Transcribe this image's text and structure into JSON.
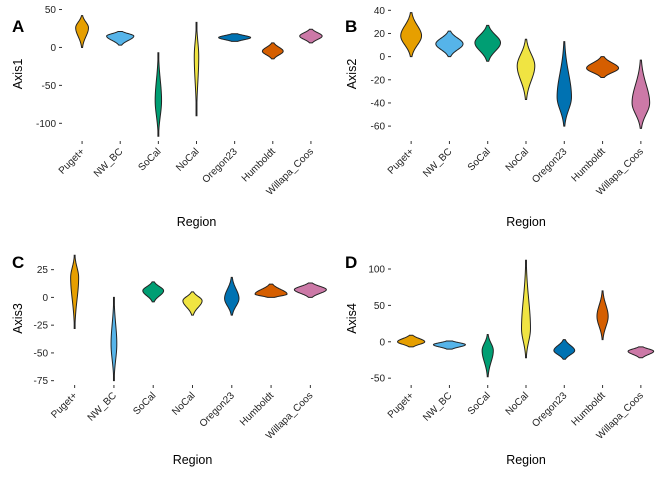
{
  "chart_data": [
    {
      "type": "violin",
      "panel": "A",
      "xlabel": "Region",
      "ylabel": "Axis1",
      "categories": [
        "Puget+",
        "NW_BC",
        "SoCal",
        "NoCal",
        "Oregon23",
        "Humboldt",
        "Willapa_Coos"
      ],
      "ylim": [
        -122,
        52
      ],
      "yticks": [
        50,
        0,
        -50,
        -100
      ],
      "ytick_labels": [
        "50",
        "0",
        "-50",
        "-100"
      ],
      "groups": [
        {
          "name": "Puget+",
          "color": "#E69F00",
          "min": 0,
          "max": 42,
          "peak": 26,
          "width": 0.4
        },
        {
          "name": "NW_BC",
          "color": "#56B4E9",
          "min": 3,
          "max": 21,
          "peak": 15,
          "width": 0.85
        },
        {
          "name": "SoCal",
          "color": "#009E73",
          "min": -117,
          "max": -7,
          "peak": -70,
          "width": 0.2
        },
        {
          "name": "NoCal",
          "color": "#F0E442",
          "min": -90,
          "max": 33,
          "peak": -12,
          "width": 0.14
        },
        {
          "name": "Oregon23",
          "color": "#0072B2",
          "min": 8,
          "max": 18,
          "peak": 13,
          "width": 1.0
        },
        {
          "name": "Humboldt",
          "color": "#D55E00",
          "min": -15,
          "max": 6,
          "peak": -5,
          "width": 0.65
        },
        {
          "name": "Willapa_Coos",
          "color": "#CC79A7",
          "min": 6,
          "max": 24,
          "peak": 15,
          "width": 0.7
        }
      ]
    },
    {
      "type": "violin",
      "panel": "B",
      "xlabel": "Region",
      "ylabel": "Axis2",
      "categories": [
        "Puget+",
        "NW_BC",
        "SoCal",
        "NoCal",
        "Oregon23",
        "Humboldt",
        "Willapa_Coos"
      ],
      "ylim": [
        -72,
        42
      ],
      "yticks": [
        40,
        20,
        0,
        -20,
        -40,
        -60
      ],
      "ytick_labels": [
        "40",
        "20",
        "0",
        "-20",
        "-40",
        "-60"
      ],
      "groups": [
        {
          "name": "Puget+",
          "color": "#E69F00",
          "min": 0,
          "max": 38,
          "peak": 18,
          "width": 0.65
        },
        {
          "name": "NW_BC",
          "color": "#56B4E9",
          "min": 0,
          "max": 22,
          "peak": 11,
          "width": 0.85
        },
        {
          "name": "SoCal",
          "color": "#009E73",
          "min": -4,
          "max": 27,
          "peak": 12,
          "width": 0.8
        },
        {
          "name": "NoCal",
          "color": "#F0E442",
          "min": -37,
          "max": 15,
          "peak": -8,
          "width": 0.55
        },
        {
          "name": "Oregon23",
          "color": "#0072B2",
          "min": -60,
          "max": 13,
          "peak": -35,
          "width": 0.45
        },
        {
          "name": "Humboldt",
          "color": "#D55E00",
          "min": -18,
          "max": 0,
          "peak": -10,
          "width": 1.0
        },
        {
          "name": "Willapa_Coos",
          "color": "#CC79A7",
          "min": -62,
          "max": -3,
          "peak": -40,
          "width": 0.55
        }
      ]
    },
    {
      "type": "violin",
      "panel": "C",
      "xlabel": "Region",
      "ylabel": "Axis3",
      "categories": [
        "Puget+",
        "NW_BC",
        "SoCal",
        "NoCal",
        "Oregon23",
        "Humboldt",
        "Willapa_Coos"
      ],
      "ylim": [
        -78,
        40
      ],
      "yticks": [
        25,
        0,
        -25,
        -50,
        -75
      ],
      "ytick_labels": [
        "25",
        "0",
        "-25",
        "-50",
        "-75"
      ],
      "groups": [
        {
          "name": "Puget+",
          "color": "#E69F00",
          "min": -28,
          "max": 38,
          "peak": 18,
          "width": 0.25
        },
        {
          "name": "NW_BC",
          "color": "#56B4E9",
          "min": -75,
          "max": 0,
          "peak": -42,
          "width": 0.18
        },
        {
          "name": "SoCal",
          "color": "#009E73",
          "min": -4,
          "max": 14,
          "peak": 6,
          "width": 0.65
        },
        {
          "name": "NoCal",
          "color": "#F0E442",
          "min": -16,
          "max": 5,
          "peak": -3,
          "width": 0.6
        },
        {
          "name": "Oregon23",
          "color": "#0072B2",
          "min": -16,
          "max": 18,
          "peak": -1,
          "width": 0.45
        },
        {
          "name": "Humboldt",
          "color": "#D55E00",
          "min": 0,
          "max": 12,
          "peak": 3,
          "width": 1.0
        },
        {
          "name": "Willapa_Coos",
          "color": "#CC79A7",
          "min": 0,
          "max": 13,
          "peak": 7,
          "width": 1.0
        }
      ]
    },
    {
      "type": "violin",
      "panel": "D",
      "xlabel": "Region",
      "ylabel": "Axis4",
      "categories": [
        "Puget+",
        "NW_BC",
        "SoCal",
        "NoCal",
        "Oregon23",
        "Humboldt",
        "Willapa_Coos"
      ],
      "ylim": [
        -58,
        122
      ],
      "yticks": [
        100,
        50,
        0,
        -50
      ],
      "ytick_labels": [
        "100",
        "50",
        "0",
        "-50"
      ],
      "groups": [
        {
          "name": "Puget+",
          "color": "#E69F00",
          "min": -7,
          "max": 9,
          "peak": 0,
          "width": 0.85
        },
        {
          "name": "NW_BC",
          "color": "#56B4E9",
          "min": -10,
          "max": 1,
          "peak": -4,
          "width": 1.0
        },
        {
          "name": "SoCal",
          "color": "#009E73",
          "min": -48,
          "max": 10,
          "peak": -12,
          "width": 0.35
        },
        {
          "name": "NoCal",
          "color": "#F0E442",
          "min": -22,
          "max": 112,
          "peak": 18,
          "width": 0.28
        },
        {
          "name": "Oregon23",
          "color": "#0072B2",
          "min": -24,
          "max": 3,
          "peak": -12,
          "width": 0.65
        },
        {
          "name": "Humboldt",
          "color": "#D55E00",
          "min": 3,
          "max": 70,
          "peak": 35,
          "width": 0.35
        },
        {
          "name": "Willapa_Coos",
          "color": "#CC79A7",
          "min": -22,
          "max": -7,
          "peak": -13,
          "width": 0.8
        }
      ]
    }
  ]
}
